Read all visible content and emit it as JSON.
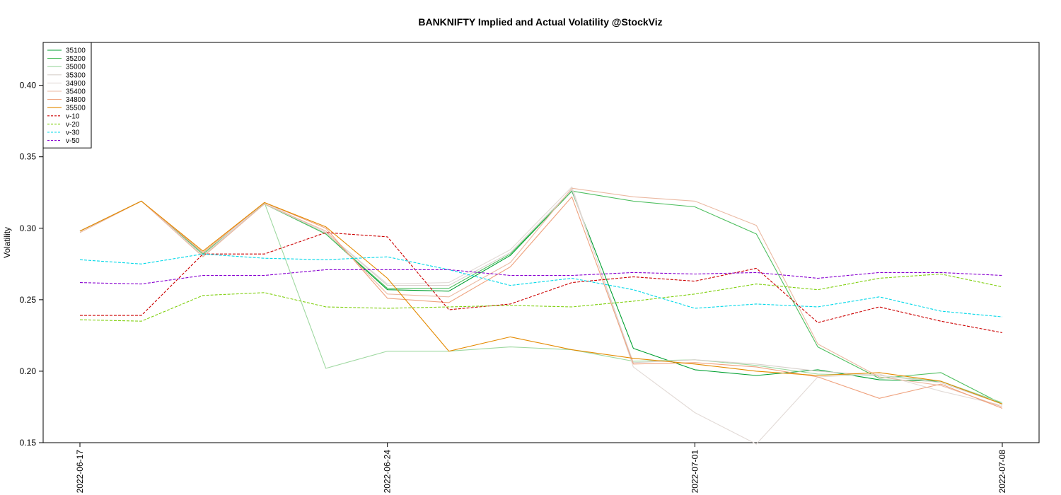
{
  "chart_data": {
    "type": "line",
    "title": "BANKNIFTY Implied and Actual Volatility @StockViz",
    "xlabel": "",
    "ylabel": "Volatility",
    "ylim": [
      0.15,
      0.43
    ],
    "yticks": [
      "0.15",
      "0.20",
      "0.25",
      "0.30",
      "0.35",
      "0.40"
    ],
    "x": [
      "2022-06-17",
      "2022-06-20",
      "2022-06-21",
      "2022-06-22",
      "2022-06-23",
      "2022-06-24",
      "2022-06-27",
      "2022-06-28",
      "2022-06-29",
      "2022-06-30",
      "2022-07-01",
      "2022-07-04",
      "2022-07-05",
      "2022-07-06",
      "2022-07-07",
      "2022-07-08"
    ],
    "xtick_labels": [
      "2022-06-17",
      "2022-06-24",
      "2022-07-01",
      "2022-07-08"
    ],
    "xtick_indices": [
      0,
      5,
      10,
      15
    ],
    "legend_position": "top-left",
    "grid": false,
    "series": [
      {
        "name": "35100",
        "color": "#00a030",
        "style": "solid",
        "values": [
          0.298,
          0.319,
          0.281,
          0.317,
          0.296,
          0.257,
          0.256,
          0.281,
          0.326,
          0.216,
          0.201,
          0.197,
          0.201,
          0.194,
          0.193,
          0.177
        ]
      },
      {
        "name": "35200",
        "color": "#4fbf60",
        "style": "solid",
        "values": [
          0.298,
          0.319,
          0.282,
          0.317,
          0.296,
          0.258,
          0.258,
          0.282,
          0.326,
          0.319,
          0.315,
          0.296,
          0.217,
          0.195,
          0.199,
          0.177
        ]
      },
      {
        "name": "35000",
        "color": "#9ed8a0",
        "style": "solid",
        "values": [
          0.298,
          0.319,
          0.281,
          0.318,
          0.202,
          0.214,
          0.214,
          0.217,
          0.215,
          0.207,
          0.208,
          0.204,
          0.198,
          0.197,
          0.193,
          0.178
        ]
      },
      {
        "name": "35300",
        "color": "#d8d0cc",
        "style": "solid",
        "values": [
          0.298,
          0.319,
          0.281,
          0.317,
          0.297,
          0.26,
          0.26,
          0.283,
          0.327,
          0.206,
          0.208,
          0.205,
          0.2,
          0.197,
          0.192,
          0.177
        ]
      },
      {
        "name": "34900",
        "color": "#e2dad6",
        "style": "solid",
        "values": [
          0.298,
          0.319,
          0.281,
          0.318,
          0.297,
          0.261,
          0.262,
          0.285,
          0.329,
          0.203,
          0.171,
          0.149,
          0.196,
          0.198,
          0.186,
          0.176
        ]
      },
      {
        "name": "35400",
        "color": "#ebb9a2",
        "style": "solid",
        "values": [
          0.297,
          0.319,
          0.28,
          0.317,
          0.298,
          0.254,
          0.252,
          0.276,
          0.328,
          0.322,
          0.319,
          0.302,
          0.219,
          0.196,
          0.19,
          0.175
        ]
      },
      {
        "name": "34800",
        "color": "#efa27e",
        "style": "solid",
        "values": [
          0.298,
          0.319,
          0.283,
          0.318,
          0.3,
          0.251,
          0.248,
          0.273,
          0.322,
          0.205,
          0.206,
          0.203,
          0.196,
          0.181,
          0.191,
          0.174
        ]
      },
      {
        "name": "35500",
        "color": "#e48a00",
        "style": "solid",
        "values": [
          0.298,
          0.319,
          0.284,
          0.318,
          0.301,
          0.265,
          0.214,
          0.224,
          0.215,
          0.209,
          0.205,
          0.2,
          0.197,
          0.199,
          0.193,
          0.177
        ]
      },
      {
        "name": "v-10",
        "color": "#cc0000",
        "style": "dashed",
        "values": [
          0.239,
          0.239,
          0.282,
          0.282,
          0.297,
          0.294,
          0.243,
          0.247,
          0.262,
          0.266,
          0.263,
          0.272,
          0.234,
          0.245,
          0.235,
          0.227
        ]
      },
      {
        "name": "v-20",
        "color": "#80d010",
        "style": "dashed",
        "values": [
          0.236,
          0.235,
          0.253,
          0.255,
          0.245,
          0.244,
          0.245,
          0.246,
          0.245,
          0.249,
          0.254,
          0.261,
          0.257,
          0.265,
          0.268,
          0.259
        ]
      },
      {
        "name": "v-30",
        "color": "#00d8e8",
        "style": "dashed",
        "values": [
          0.278,
          0.275,
          0.282,
          0.279,
          0.278,
          0.28,
          0.271,
          0.26,
          0.265,
          0.257,
          0.244,
          0.247,
          0.245,
          0.252,
          0.242,
          0.238
        ]
      },
      {
        "name": "v-50",
        "color": "#8800d0",
        "style": "dashed",
        "values": [
          0.262,
          0.261,
          0.267,
          0.267,
          0.271,
          0.271,
          0.271,
          0.267,
          0.267,
          0.269,
          0.268,
          0.269,
          0.265,
          0.269,
          0.269,
          0.267
        ]
      }
    ]
  }
}
